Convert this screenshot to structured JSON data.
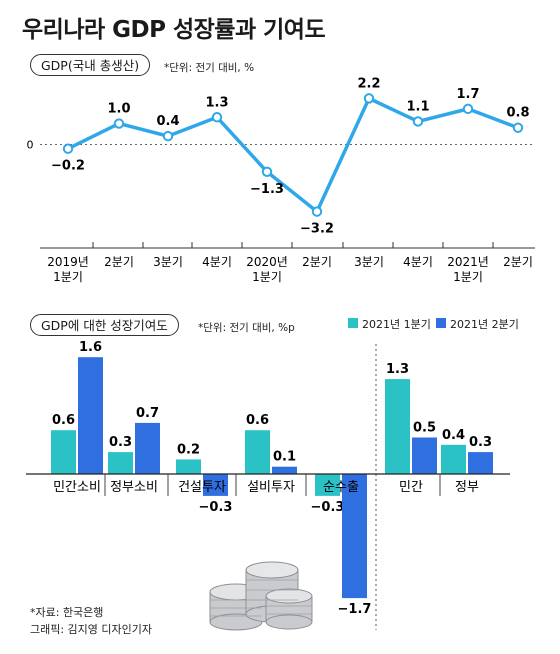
{
  "page_title": "우리나라 GDP 성장률과 기여도",
  "colors": {
    "line": "#2fa7e8",
    "bar_q1": "#2bc2c6",
    "bar_q2": "#2f6fe0"
  },
  "chart_data": [
    {
      "type": "line",
      "tag": "GDP(국내 총생산)",
      "unit_note": "*단위: 전기 대비, %",
      "zero_label": "0",
      "x_labels": [
        "2019년\n1분기",
        "2분기",
        "3분기",
        "4분기",
        "2020년\n1분기",
        "2분기",
        "3분기",
        "4분기",
        "2021년\n1분기",
        "2분기"
      ],
      "values": [
        -0.2,
        1.0,
        0.4,
        1.3,
        -1.3,
        -3.2,
        2.2,
        1.1,
        1.7,
        0.8
      ],
      "value_labels": [
        "−0.2",
        "1.0",
        "0.4",
        "1.3",
        "−1.3",
        "−3.2",
        "2.2",
        "1.1",
        "1.7",
        "0.8"
      ],
      "ylim": [
        -3.6,
        2.6
      ],
      "zero_line": "dashed"
    },
    {
      "type": "bar",
      "tag": "GDP에 대한 성장기여도",
      "unit_note": "*단위: 전기 대비, %p",
      "categories": [
        "민간소비",
        "정부소비",
        "건설투자",
        "설비투자",
        "순수출",
        "민간",
        "정부"
      ],
      "series": [
        {
          "name": "2021년 1분기",
          "values": [
            0.6,
            0.3,
            0.2,
            0.6,
            -0.3,
            1.3,
            0.4
          ],
          "value_labels": [
            "0.6",
            "0.3",
            "0.2",
            "0.6",
            "−0.3",
            "1.3",
            "0.4"
          ]
        },
        {
          "name": "2021년 2분기",
          "values": [
            1.6,
            0.7,
            -0.3,
            0.1,
            -1.7,
            0.5,
            0.3
          ],
          "value_labels": [
            "1.6",
            "0.7",
            "−0.3",
            "0.1",
            "−1.7",
            "0.5",
            "0.3"
          ]
        }
      ],
      "ylim": [
        -1.8,
        1.7
      ],
      "separator_after": "순수출"
    }
  ],
  "footnotes": {
    "source": "*자료: 한국은행",
    "graphic": "그래픽: 김지영 디자인기자"
  }
}
